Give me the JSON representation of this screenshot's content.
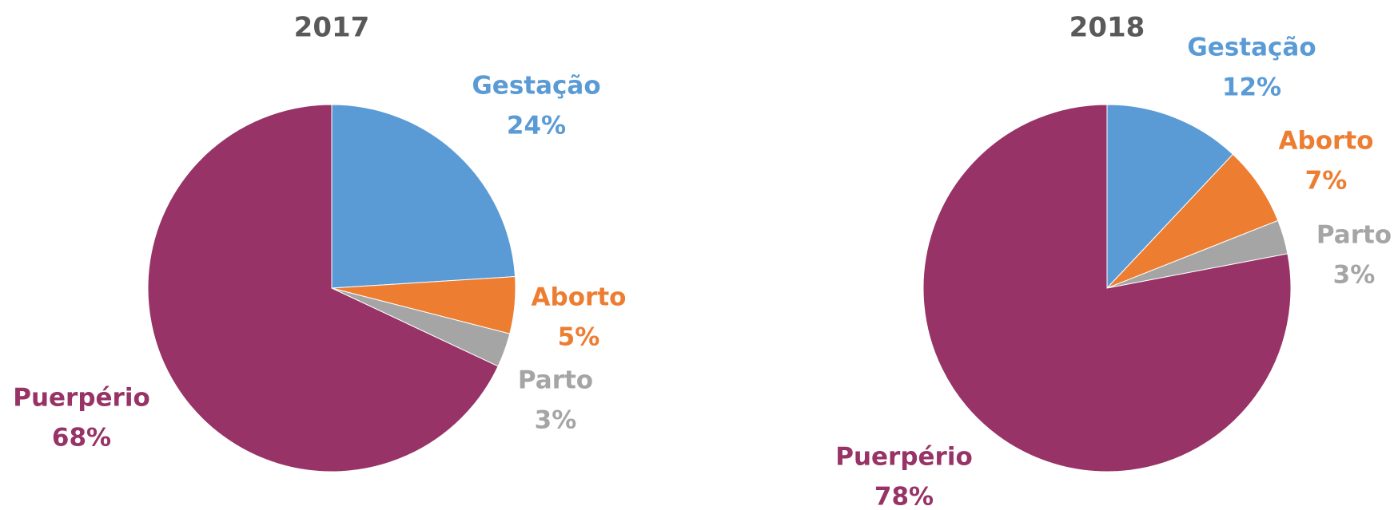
{
  "chart_data": [
    {
      "type": "pie",
      "title": "2017",
      "categories": [
        "Gestação",
        "Aborto",
        "Parto",
        "Puerpério"
      ],
      "values": [
        24,
        5,
        3,
        68
      ],
      "value_labels": [
        "24%",
        "5%",
        "3%",
        "68%"
      ],
      "colors": [
        "#5b9bd5",
        "#ed7d31",
        "#a5a5a5",
        "#973366"
      ]
    },
    {
      "type": "pie",
      "title": "2018",
      "categories": [
        "Gestação",
        "Aborto",
        "Parto",
        "Puerpério"
      ],
      "values": [
        12,
        7,
        3,
        78
      ],
      "value_labels": [
        "12%",
        "7%",
        "3%",
        "78%"
      ],
      "colors": [
        "#5b9bd5",
        "#ed7d31",
        "#a5a5a5",
        "#973366"
      ]
    }
  ]
}
